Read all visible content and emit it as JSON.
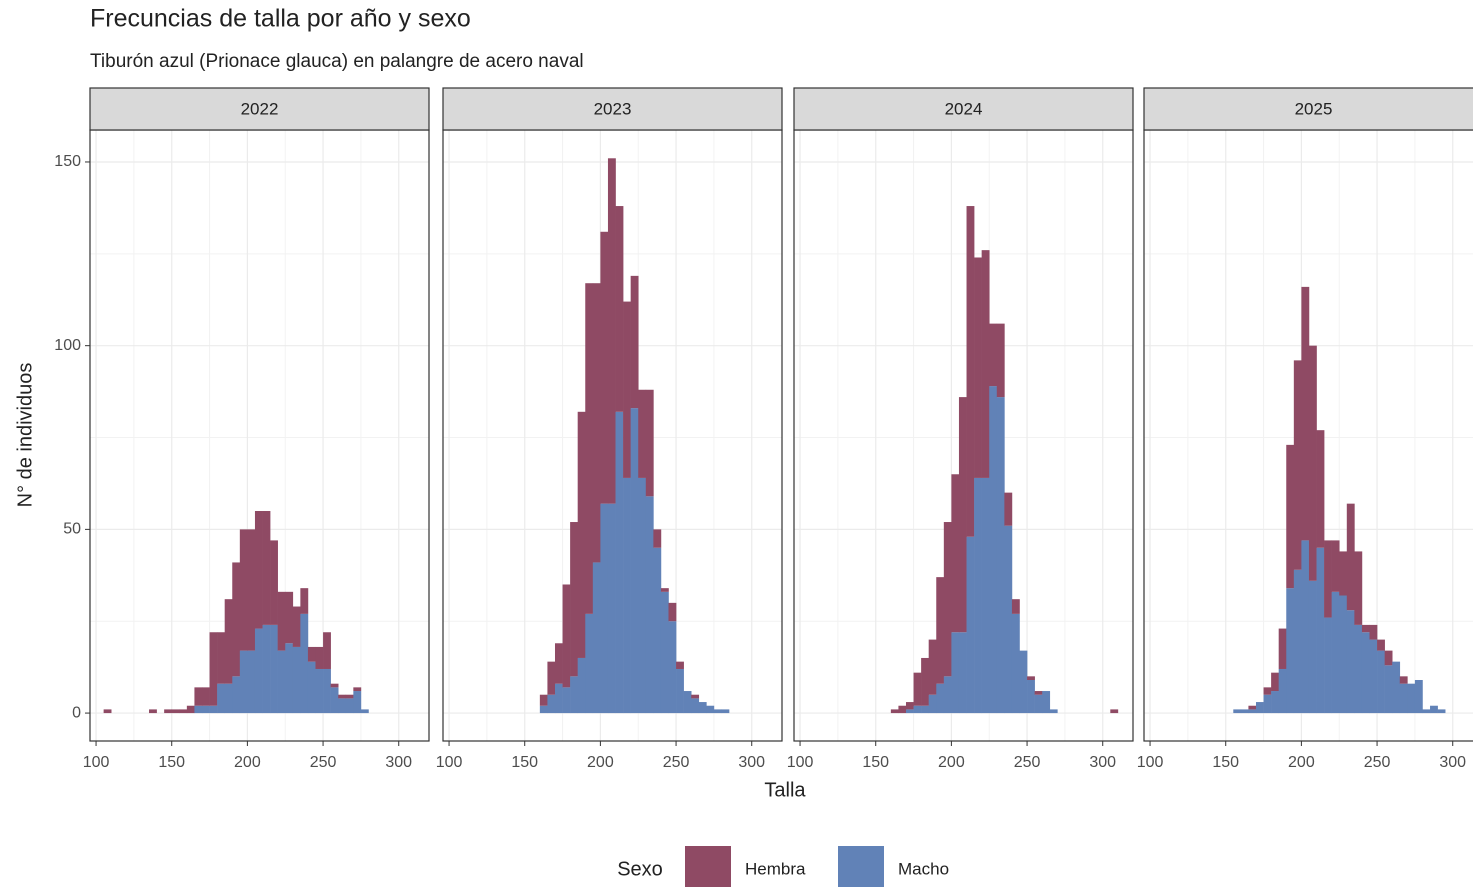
{
  "chart_data": {
    "type": "histogram",
    "title": "Frecuncias de talla por año y sexo",
    "subtitle": "Tiburón azul (Prionace glauca) en palangre de acero naval",
    "x_label": "Talla",
    "y_label": "N° de individuos",
    "legend_title": "Sexo",
    "legend_position": "bottom",
    "stacked": true,
    "grid": true,
    "minor_grid": true,
    "xlim": [
      96,
      320
    ],
    "ylim": [
      -7.6,
      158.7
    ],
    "xticks": [
      100,
      150,
      200,
      250,
      300
    ],
    "yticks": [
      0,
      50,
      100,
      150
    ],
    "bins": [
      105,
      110,
      115,
      120,
      125,
      130,
      135,
      140,
      145,
      150,
      155,
      160,
      165,
      170,
      175,
      180,
      185,
      190,
      195,
      200,
      205,
      210,
      215,
      220,
      225,
      230,
      235,
      240,
      245,
      250,
      255,
      260,
      265,
      270,
      275,
      280,
      285,
      290,
      295,
      300,
      305,
      310
    ],
    "series": [
      {
        "name": "Hembra",
        "color": "#8f4a64"
      },
      {
        "name": "Macho",
        "color": "#6182b7"
      }
    ],
    "facets": [
      {
        "title": "2022",
        "series": [
          {
            "values": [
              1,
              0,
              0,
              0,
              0,
              0,
              1,
              0,
              1,
              1,
              1,
              2,
              5,
              5,
              20,
              14,
              23,
              31,
              33,
              33,
              32,
              31,
              23,
              16,
              14,
              11,
              7,
              4,
              6,
              10,
              1,
              1,
              1,
              1,
              0,
              0,
              0,
              0,
              0,
              0,
              0
            ]
          },
          {
            "values": [
              0,
              0,
              0,
              0,
              0,
              0,
              0,
              0,
              0,
              0,
              0,
              0,
              2,
              2,
              2,
              8,
              8,
              10,
              17,
              17,
              23,
              24,
              24,
              17,
              19,
              18,
              27,
              14,
              12,
              12,
              7,
              4,
              4,
              6,
              1,
              0,
              0,
              0,
              0,
              0,
              0
            ]
          }
        ]
      },
      {
        "title": "2023",
        "series": [
          {
            "values": [
              0,
              0,
              0,
              0,
              0,
              0,
              0,
              0,
              0,
              0,
              0,
              3,
              9,
              11,
              28,
              42,
              67,
              90,
              76,
              74,
              94,
              56,
              48,
              36,
              24,
              29,
              5,
              1,
              5,
              2,
              0,
              1,
              0,
              0,
              0,
              0,
              0,
              0,
              0,
              0,
              0
            ]
          },
          {
            "values": [
              0,
              0,
              0,
              0,
              0,
              0,
              0,
              0,
              0,
              0,
              0,
              2,
              5,
              8,
              7,
              10,
              15,
              27,
              41,
              57,
              57,
              82,
              64,
              83,
              64,
              59,
              45,
              33,
              25,
              12,
              6,
              4,
              3,
              2,
              1,
              1,
              0,
              0,
              0,
              0,
              0
            ]
          }
        ]
      },
      {
        "title": "2024",
        "series": [
          {
            "values": [
              0,
              0,
              0,
              0,
              0,
              0,
              0,
              0,
              0,
              0,
              0,
              1,
              2,
              2,
              9,
              13,
              15,
              29,
              42,
              43,
              64,
              90,
              60,
              62,
              17,
              20,
              9,
              4,
              0,
              1,
              1,
              0,
              0,
              0,
              0,
              0,
              0,
              0,
              0,
              0,
              1
            ]
          },
          {
            "values": [
              0,
              0,
              0,
              0,
              0,
              0,
              0,
              0,
              0,
              0,
              0,
              0,
              0,
              1,
              2,
              2,
              5,
              8,
              10,
              22,
              22,
              48,
              64,
              64,
              89,
              86,
              51,
              27,
              17,
              9,
              5,
              6,
              1,
              0,
              0,
              0,
              0,
              0,
              0,
              0,
              0
            ]
          }
        ]
      },
      {
        "title": "2025",
        "series": [
          {
            "values": [
              0,
              0,
              0,
              0,
              0,
              0,
              0,
              0,
              0,
              0,
              0,
              0,
              1,
              0,
              2,
              5,
              11,
              39,
              57,
              69,
              64,
              32,
              21,
              14,
              12,
              29,
              20,
              2,
              4,
              3,
              4,
              0,
              2,
              0,
              0,
              0,
              0,
              0,
              0,
              0,
              0
            ]
          },
          {
            "values": [
              0,
              0,
              0,
              0,
              0,
              0,
              0,
              0,
              0,
              0,
              1,
              1,
              1,
              3,
              5,
              6,
              12,
              34,
              39,
              47,
              36,
              45,
              26,
              33,
              32,
              28,
              24,
              22,
              20,
              17,
              13,
              14,
              8,
              8,
              9,
              1,
              2,
              1,
              0,
              0,
              0
            ]
          }
        ]
      }
    ]
  }
}
